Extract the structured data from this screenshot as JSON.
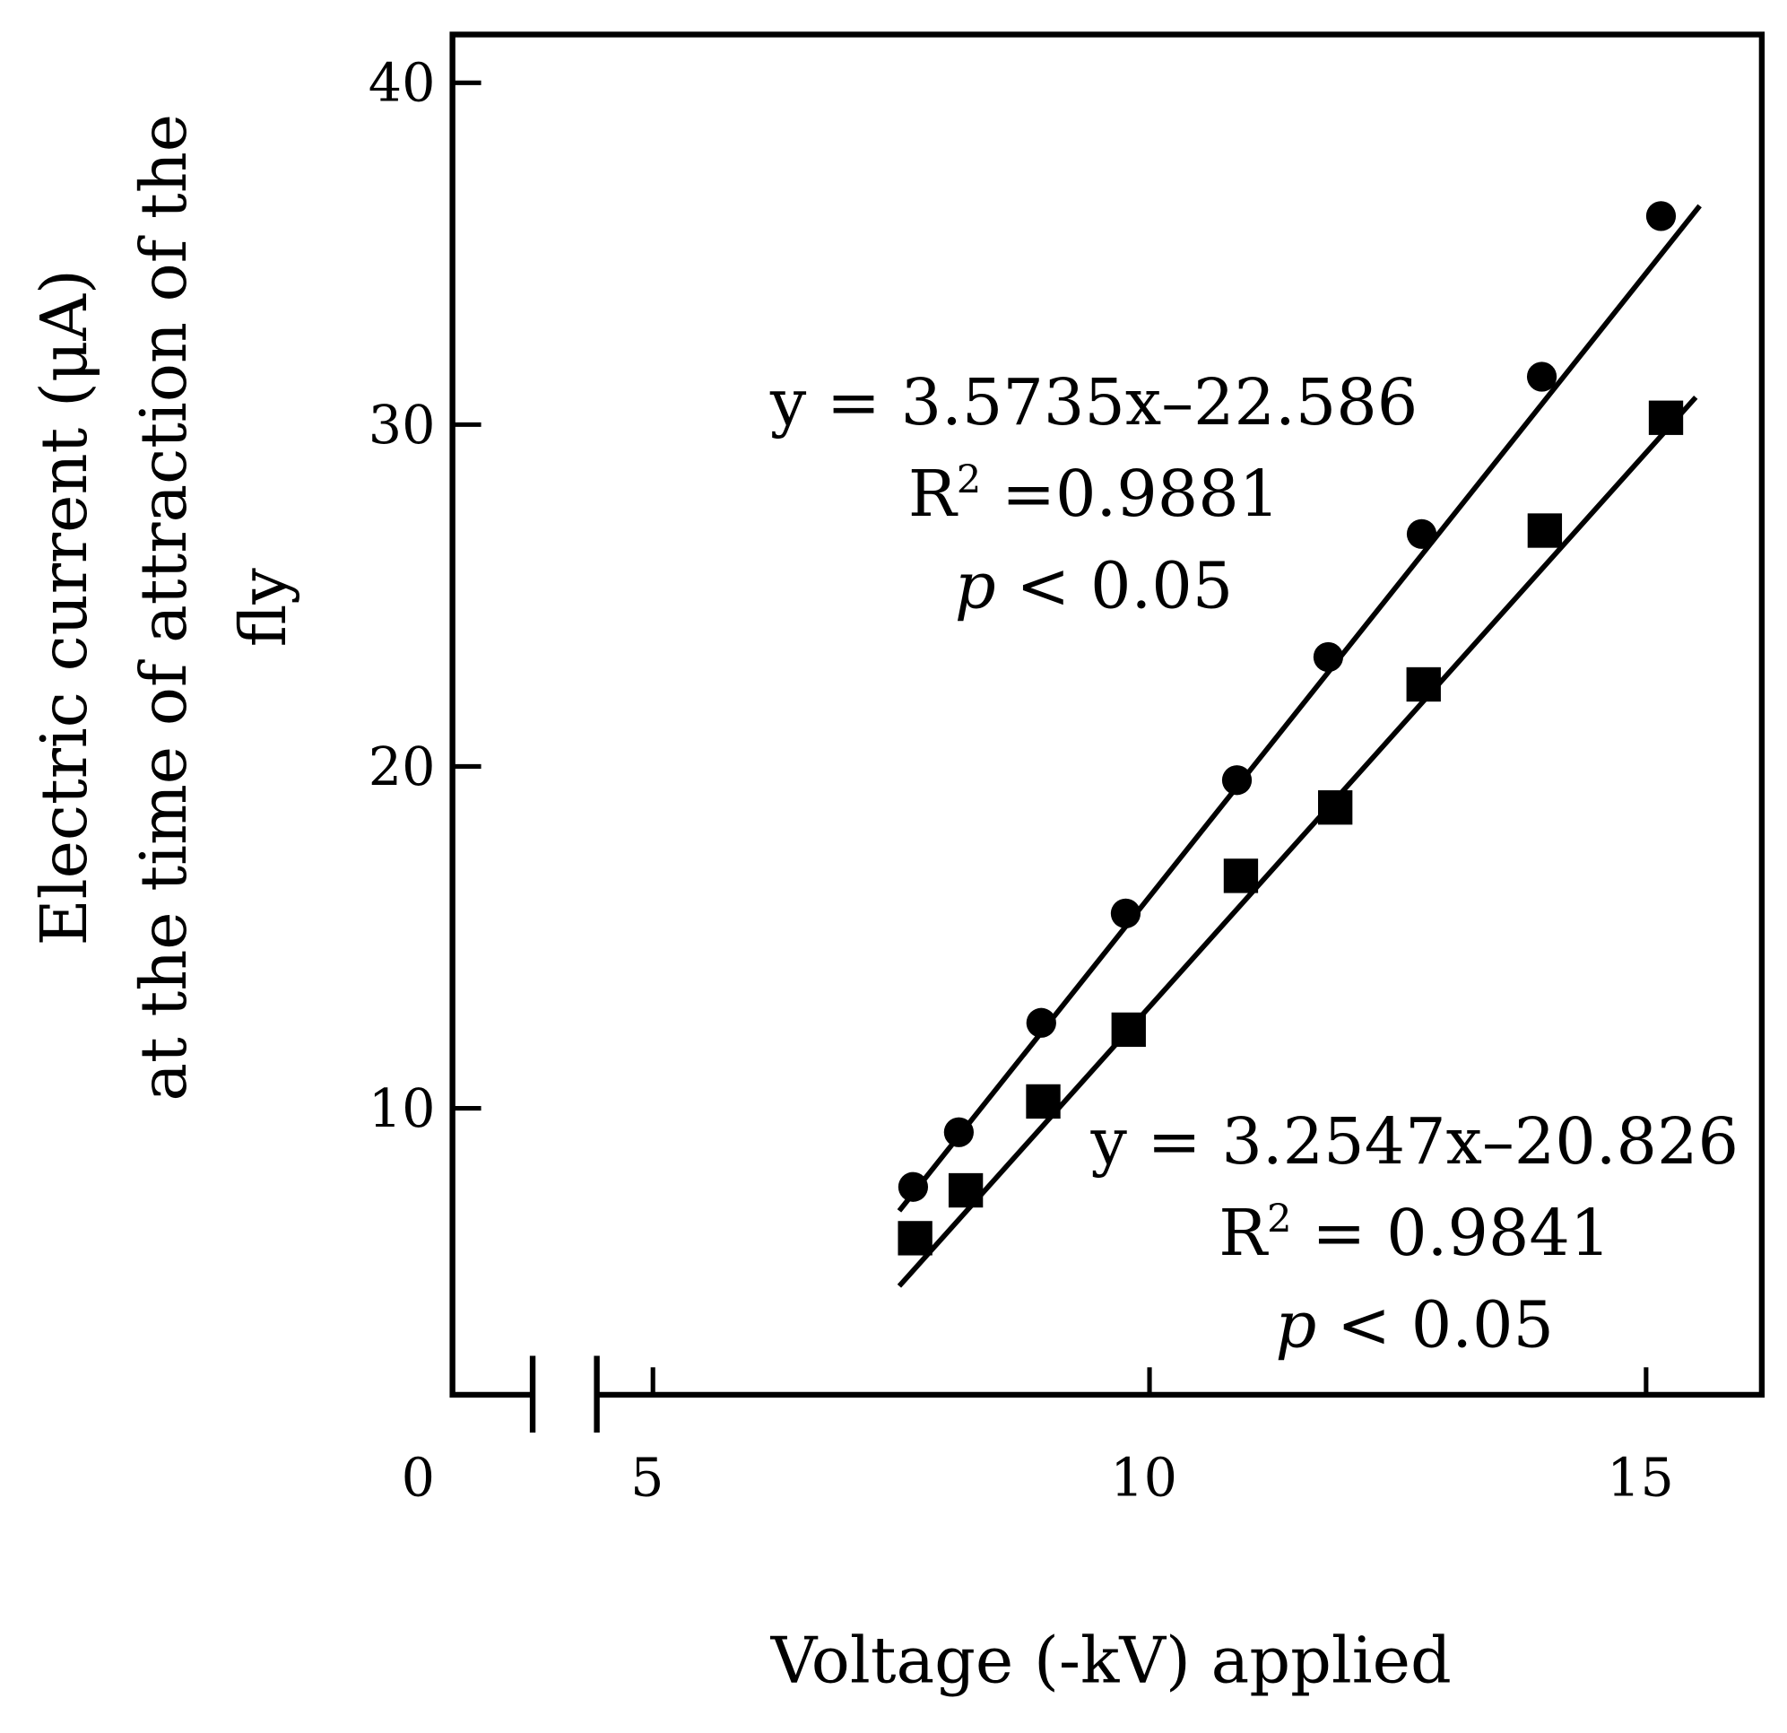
{
  "chart_data": {
    "type": "scatter",
    "title": "",
    "xlabel": "Voltage (-kV) applied",
    "ylabel_lines": [
      "Electric current (μA)",
      "at the time of attraction of the",
      "fly"
    ],
    "xlim": [
      5,
      15.8
    ],
    "ylim": [
      2.5,
      41.5
    ],
    "x_ticks": [
      5,
      10,
      15
    ],
    "x_tick_labels": [
      "5",
      "10",
      "15"
    ],
    "x_break_origin_label": "0",
    "y_ticks": [
      10,
      20,
      30,
      40
    ],
    "y_tick_labels": [
      "10",
      "20",
      "30",
      "40"
    ],
    "grid": false,
    "axis_break": true,
    "series": [
      {
        "marker": "circle",
        "color": "#000000",
        "x": [
          7.62,
          8.08,
          8.91,
          9.76,
          10.88,
          11.8,
          12.74,
          13.95,
          15.15
        ],
        "y": [
          7.7,
          9.3,
          12.5,
          15.7,
          19.6,
          23.2,
          26.8,
          31.4,
          36.1
        ],
        "fit": {
          "x": [
            7.48,
            15.54
          ],
          "y": [
            7.0,
            36.4
          ]
        },
        "annotation": [
          "y = 3.5735x–22.586",
          "R",
          "2",
          " =0.9881",
          "p",
          " < 0.05"
        ]
      },
      {
        "marker": "square",
        "color": "#000000",
        "x": [
          7.64,
          8.15,
          8.93,
          9.79,
          10.92,
          11.87,
          12.76,
          13.98,
          15.2
        ],
        "y": [
          6.2,
          7.6,
          10.2,
          12.3,
          16.8,
          18.8,
          22.4,
          26.9,
          30.2
        ],
        "fit": {
          "x": [
            7.48,
            15.5
          ],
          "y": [
            4.8,
            30.8
          ]
        },
        "annotation": [
          "y = 3.2547x–20.826",
          "R",
          "2",
          " = 0.9841",
          "p",
          " < 0.05"
        ]
      }
    ]
  }
}
